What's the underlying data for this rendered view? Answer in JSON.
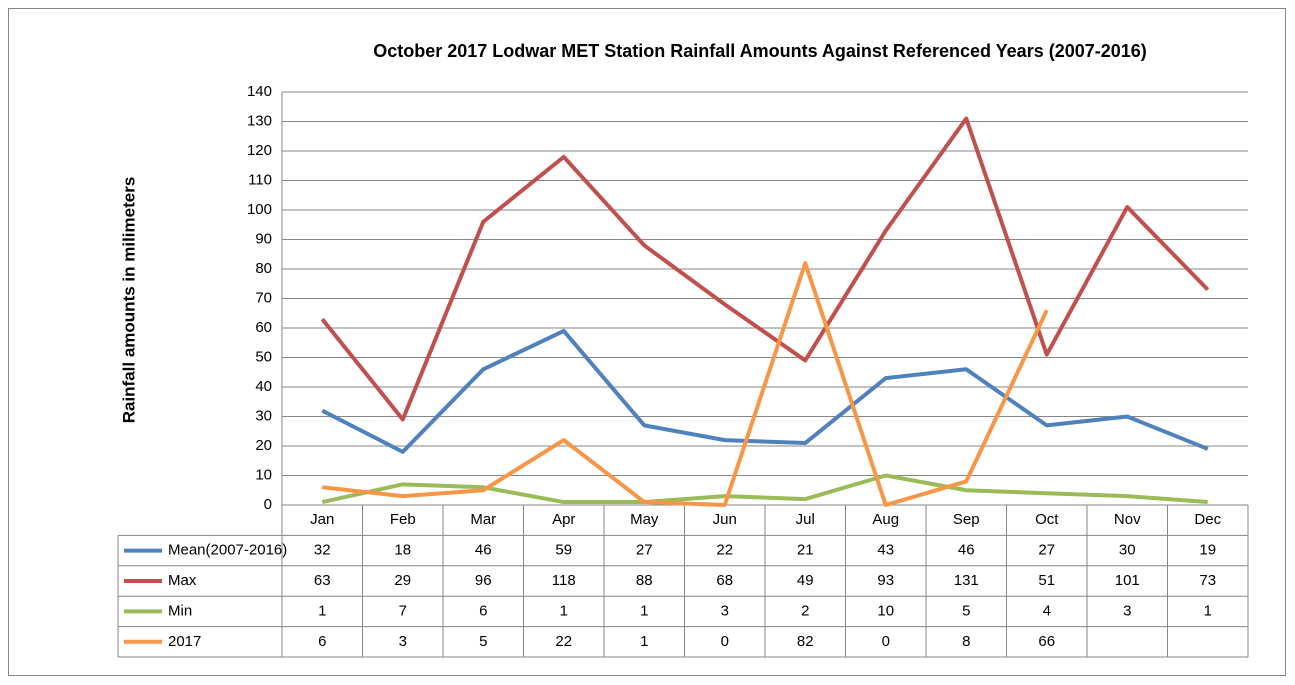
{
  "chart_data": {
    "type": "line",
    "title": "October 2017 Lodwar MET Station Rainfall Amounts Against Referenced Years (2007-2016)",
    "y_label": "Rainfall amounts in milimeters",
    "categories": [
      "Jan",
      "Feb",
      "Mar",
      "Apr",
      "May",
      "Jun",
      "Jul",
      "Aug",
      "Sep",
      "Oct",
      "Nov",
      "Dec"
    ],
    "series": [
      {
        "name": "Mean(2007-2016)",
        "color": "#4f81bd",
        "values": [
          32,
          18,
          46,
          59,
          27,
          22,
          21,
          43,
          46,
          27,
          30,
          19
        ]
      },
      {
        "name": "Max",
        "color": "#c0504d",
        "values": [
          63,
          29,
          96,
          118,
          88,
          68,
          49,
          93,
          131,
          51,
          101,
          73
        ]
      },
      {
        "name": "Min",
        "color": "#9bbb59",
        "values": [
          1,
          7,
          6,
          1,
          1,
          3,
          2,
          10,
          5,
          4,
          3,
          1
        ]
      },
      {
        "name": "2017",
        "color": "#f79646",
        "values": [
          6,
          3,
          5,
          22,
          1,
          0,
          82,
          0,
          8,
          66,
          null,
          null
        ]
      }
    ],
    "ylim": [
      0,
      140
    ],
    "yticks": [
      0,
      10,
      20,
      30,
      40,
      50,
      60,
      70,
      80,
      90,
      100,
      110,
      120,
      130,
      140
    ],
    "grid": true
  }
}
